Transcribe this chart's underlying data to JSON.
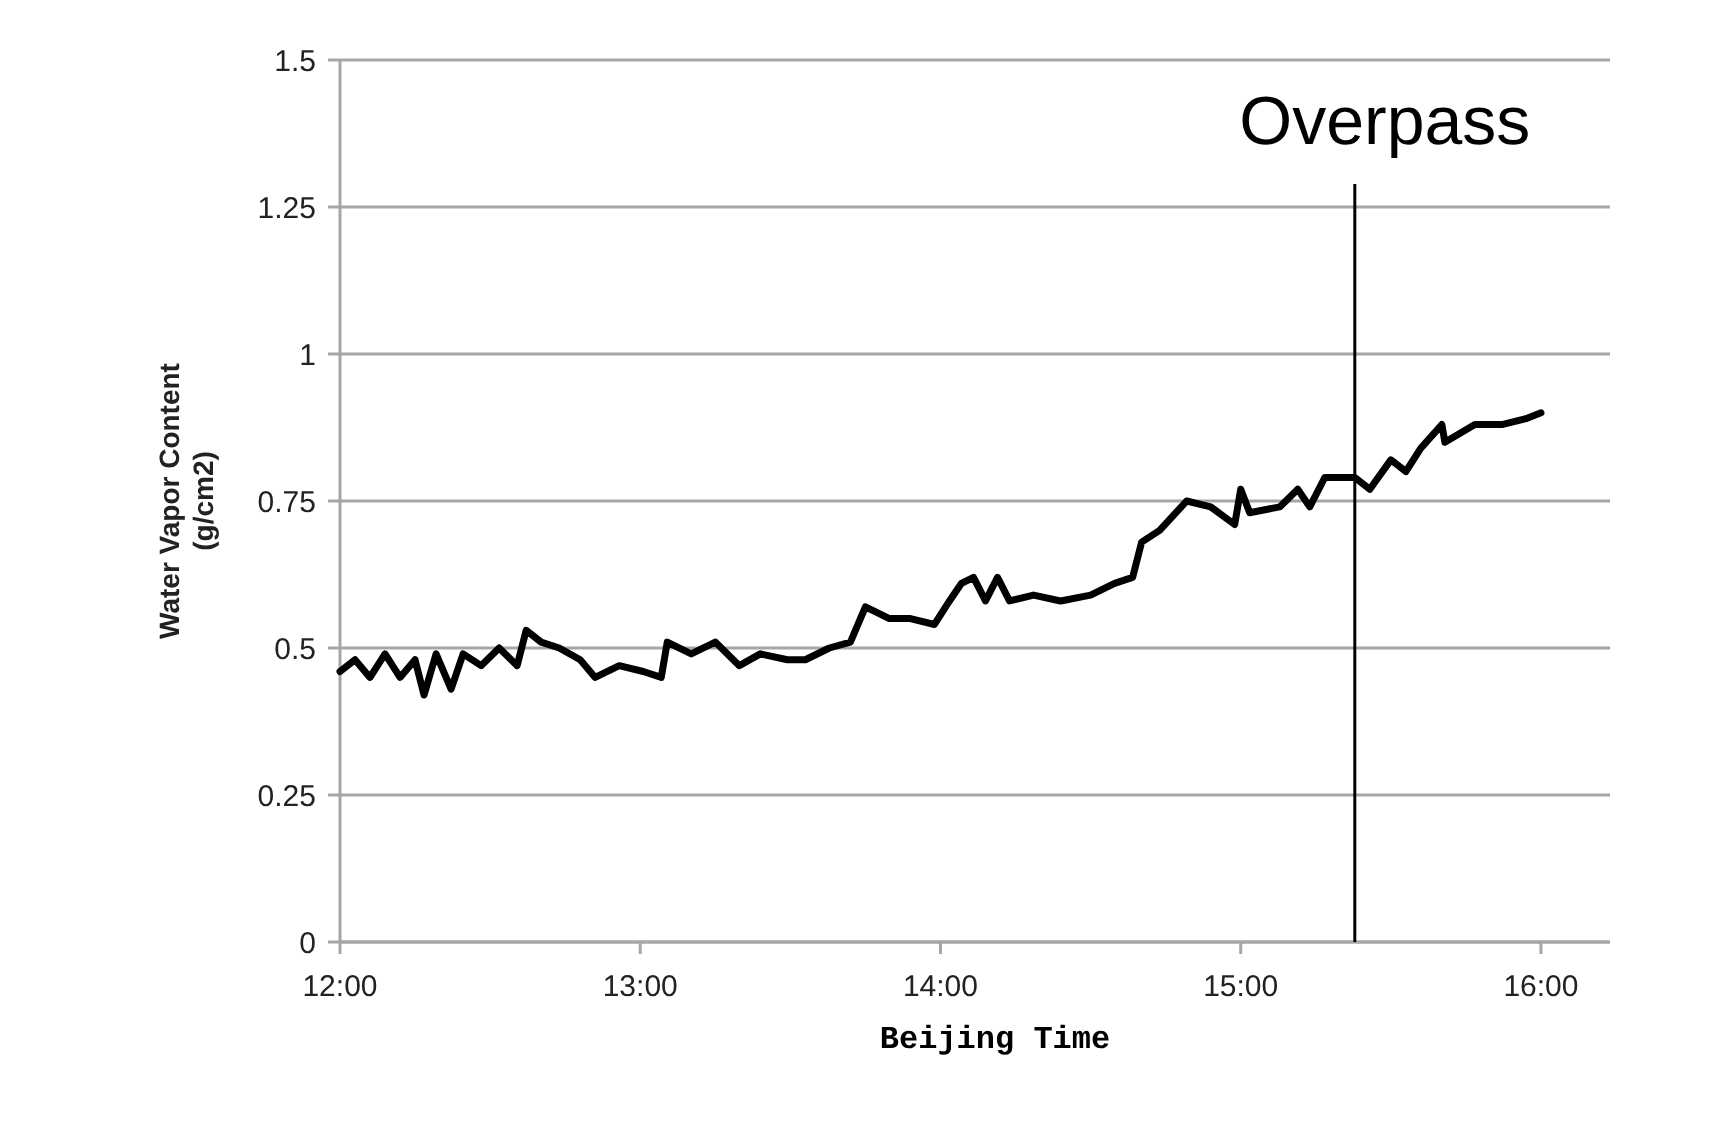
{
  "chart_data": {
    "type": "line",
    "xlabel": "Beijing Time",
    "ylabel": "Water Vapor Content\n(g/cm2)",
    "xlim": [
      12,
      16.23
    ],
    "ylim": [
      0,
      1.5
    ],
    "xticks": [
      {
        "value": 12,
        "label": "12:00"
      },
      {
        "value": 13,
        "label": "13:00"
      },
      {
        "value": 14,
        "label": "14:00"
      },
      {
        "value": 15,
        "label": "15:00"
      },
      {
        "value": 16,
        "label": "16:00"
      }
    ],
    "yticks": [
      0,
      0.25,
      0.5,
      0.75,
      1,
      1.25,
      1.5
    ],
    "grid": "y",
    "marker": "none",
    "line_style": "solid",
    "ref_lines": [
      {
        "axis": "x",
        "value": 15.38,
        "label": "Overpass",
        "color": "#000000"
      }
    ],
    "series": [
      {
        "color": "#000000",
        "x": [
          12.0,
          12.05,
          12.1,
          12.15,
          12.2,
          12.25,
          12.28,
          12.32,
          12.37,
          12.41,
          12.47,
          12.53,
          12.59,
          12.62,
          12.67,
          12.73,
          12.8,
          12.85,
          12.93,
          13.01,
          13.07,
          13.09,
          13.17,
          13.25,
          13.33,
          13.4,
          13.49,
          13.55,
          13.63,
          13.7,
          13.75,
          13.83,
          13.9,
          13.98,
          14.03,
          14.07,
          14.11,
          14.15,
          14.19,
          14.23,
          14.31,
          14.4,
          14.5,
          14.58,
          14.64,
          14.67,
          14.73,
          14.82,
          14.9,
          14.98,
          15.0,
          15.03,
          15.13,
          15.19,
          15.23,
          15.28,
          15.38,
          15.43,
          15.5,
          15.55,
          15.6,
          15.67,
          15.68,
          15.78,
          15.87,
          15.95,
          16.0
        ],
        "values": [
          0.46,
          0.48,
          0.45,
          0.49,
          0.45,
          0.48,
          0.42,
          0.49,
          0.43,
          0.49,
          0.47,
          0.5,
          0.47,
          0.53,
          0.51,
          0.5,
          0.48,
          0.45,
          0.47,
          0.46,
          0.45,
          0.51,
          0.49,
          0.51,
          0.47,
          0.49,
          0.48,
          0.48,
          0.5,
          0.51,
          0.57,
          0.55,
          0.55,
          0.54,
          0.58,
          0.61,
          0.62,
          0.58,
          0.62,
          0.58,
          0.59,
          0.58,
          0.59,
          0.61,
          0.62,
          0.68,
          0.7,
          0.75,
          0.74,
          0.71,
          0.77,
          0.73,
          0.74,
          0.77,
          0.74,
          0.79,
          0.79,
          0.77,
          0.82,
          0.8,
          0.84,
          0.88,
          0.85,
          0.88,
          0.88,
          0.89,
          0.9
        ]
      }
    ]
  }
}
